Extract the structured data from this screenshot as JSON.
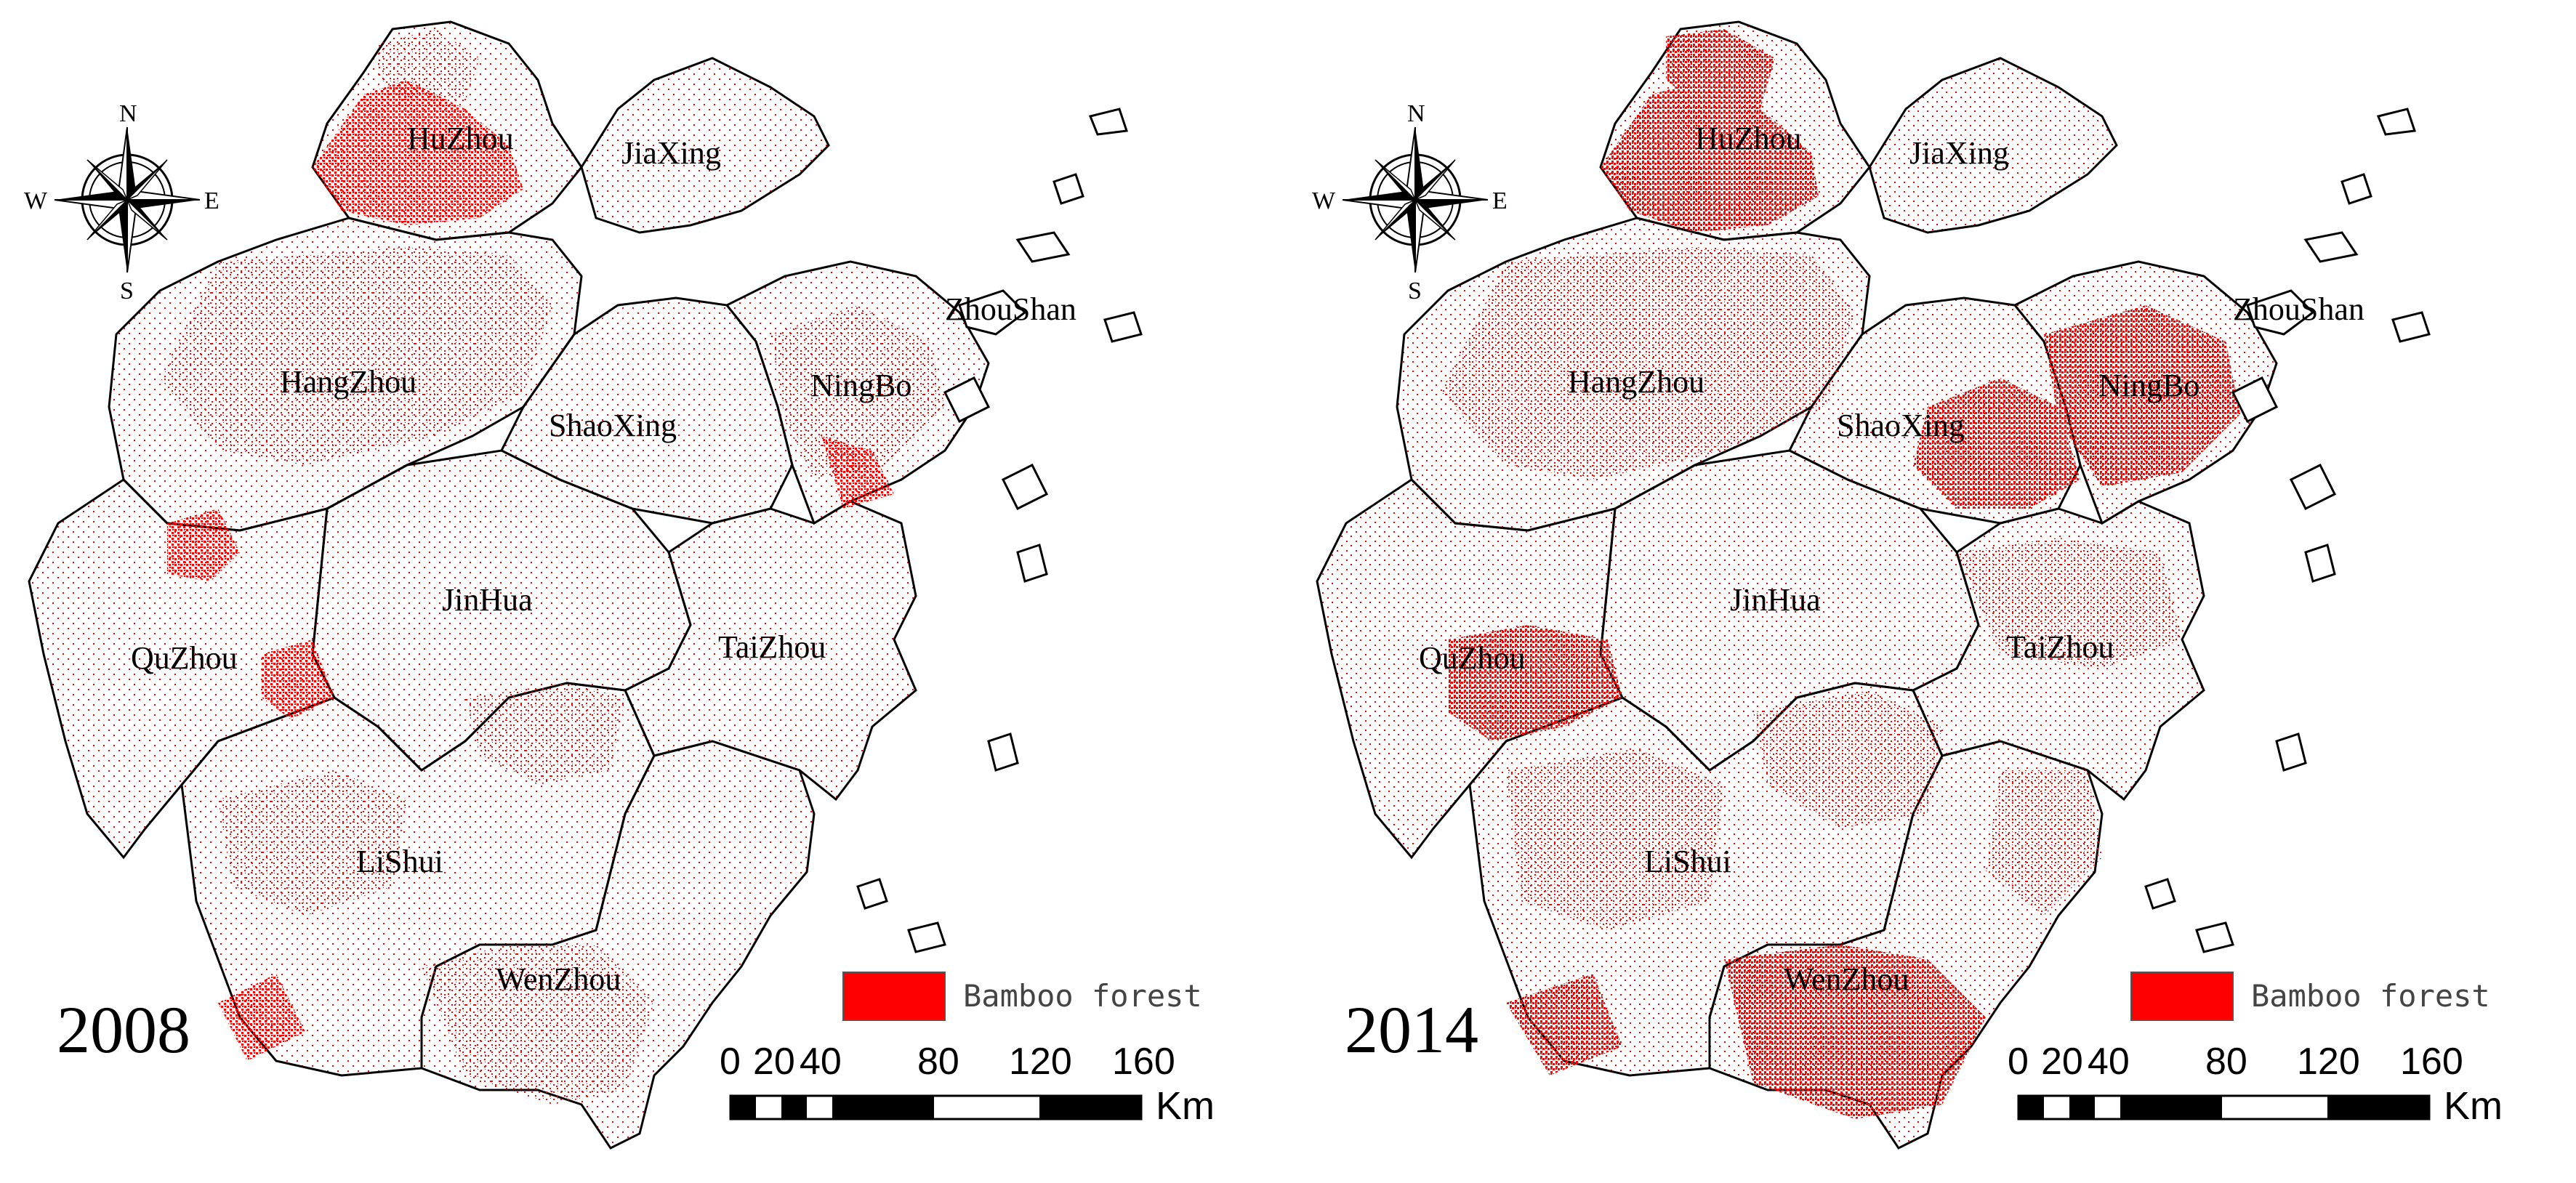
{
  "maps": [
    {
      "year": "2008",
      "cities": [
        {
          "id": "huzhou",
          "name": "HuZhou"
        },
        {
          "id": "jiaxing",
          "name": "JiaXing"
        },
        {
          "id": "hangzhou",
          "name": "HangZhou"
        },
        {
          "id": "shaoxing",
          "name": "ShaoXing"
        },
        {
          "id": "ningbo",
          "name": "NingBo"
        },
        {
          "id": "zhoushan",
          "name": "ZhouShan"
        },
        {
          "id": "jinhua",
          "name": "JinHua"
        },
        {
          "id": "quzhou",
          "name": "QuZhou"
        },
        {
          "id": "taizhou",
          "name": "TaiZhou"
        },
        {
          "id": "lishui",
          "name": "LiShui"
        },
        {
          "id": "wenzhou",
          "name": "WenZhou"
        }
      ]
    },
    {
      "year": "2014",
      "cities": [
        {
          "id": "huzhou",
          "name": "HuZhou"
        },
        {
          "id": "jiaxing",
          "name": "JiaXing"
        },
        {
          "id": "hangzhou",
          "name": "HangZhou"
        },
        {
          "id": "shaoxing",
          "name": "ShaoXing"
        },
        {
          "id": "ningbo",
          "name": "NingBo"
        },
        {
          "id": "zhoushan",
          "name": "ZhouShan"
        },
        {
          "id": "jinhua",
          "name": "JinHua"
        },
        {
          "id": "quzhou",
          "name": "QuZhou"
        },
        {
          "id": "taizhou",
          "name": "TaiZhou"
        },
        {
          "id": "lishui",
          "name": "LiShui"
        },
        {
          "id": "wenzhou",
          "name": "WenZhou"
        }
      ]
    }
  ],
  "legend": {
    "label": "Bamboo forest",
    "color": "#ff0000"
  },
  "scale_bar": {
    "ticks": [
      "0",
      "20",
      "40",
      "80",
      "120",
      "160"
    ],
    "unit": "Km"
  },
  "compass": {
    "n": "N",
    "s": "S",
    "e": "E",
    "w": "W"
  },
  "colors": {
    "bamboo": "#ff0000",
    "boundary": "#000000",
    "background": "#ffffff"
  }
}
